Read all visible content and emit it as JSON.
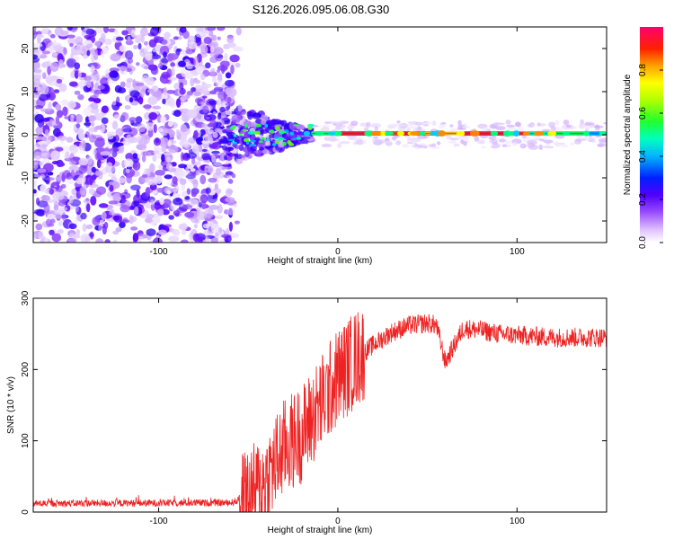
{
  "title": "S126.2026.095.06.08.G30",
  "chart_data": [
    {
      "type": "heatmap",
      "title": "S126.2026.095.06.08.G30",
      "xlabel": "Height of straight line (km)",
      "ylabel": "Frequency (Hz)",
      "xlim": [
        -170,
        150
      ],
      "ylim": [
        -25,
        25
      ],
      "xticks": [
        -100,
        0,
        100
      ],
      "xtick_labels": [
        "-100",
        "0",
        "100"
      ],
      "yticks": [
        -20,
        -10,
        0,
        10,
        20
      ],
      "ytick_labels": [
        "-20",
        "-10",
        "0",
        "10",
        "20"
      ],
      "colorbar": {
        "label": "Normalized spectral amplitude",
        "range": [
          0,
          1
        ],
        "ticks": [
          0.0,
          0.2,
          0.4,
          0.6,
          0.8
        ],
        "tick_labels": [
          "0.0",
          "0.2",
          "0.4",
          "0.6",
          "0.8"
        ],
        "colormap": [
          "#ffffff",
          "#e6ccff",
          "#b080ff",
          "#6600ff",
          "#0000ff",
          "#00ccff",
          "#00ff99",
          "#33ff00",
          "#ffff00",
          "#ff9900",
          "#ff0000",
          "#ff0066"
        ]
      },
      "description_regions": [
        {
          "x_range": [
            -170,
            -60
          ],
          "level": "scattered noise"
        },
        {
          "x_range": [
            -60,
            -20
          ],
          "level": "transition"
        },
        {
          "x_range": [
            -20,
            150
          ],
          "level": "strong line near 0 Hz"
        }
      ]
    },
    {
      "type": "line",
      "xlabel": "Height of straight line (km)",
      "ylabel": "SNR (10 * v/v)",
      "xlim": [
        -170,
        150
      ],
      "ylim": [
        0,
        300
      ],
      "xticks": [
        -100,
        0,
        100
      ],
      "xtick_labels": [
        "-100",
        "0",
        "100"
      ],
      "yticks": [
        0,
        100,
        200,
        300
      ],
      "ytick_labels": [
        "0",
        "100",
        "200",
        "300"
      ],
      "series": [
        {
          "name": "SNR",
          "color": "#ee2222",
          "profile_x": [
            -170,
            -60,
            -50,
            -40,
            -30,
            -20,
            -10,
            0,
            10,
            20,
            30,
            40,
            50,
            55,
            60,
            70,
            80,
            90,
            100,
            120,
            140,
            150
          ],
          "profile_y": [
            12,
            13,
            20,
            45,
            90,
            110,
            150,
            190,
            215,
            235,
            252,
            262,
            265,
            262,
            210,
            258,
            255,
            250,
            248,
            245,
            245,
            245
          ]
        }
      ]
    }
  ]
}
